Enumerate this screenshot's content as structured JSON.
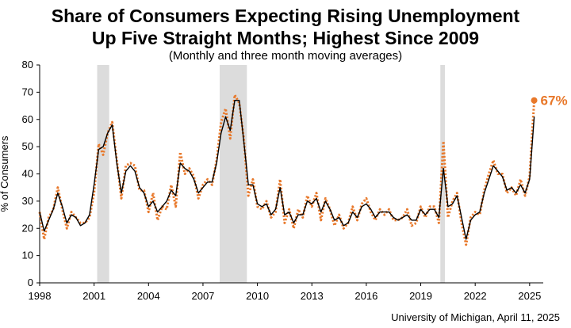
{
  "chart_data": {
    "type": "line",
    "title": "Share of Consumers Expecting Rising Unemployment",
    "title_line2": "Up Five Straight Months; Highest Since 2009",
    "subtitle": "(Monthly and three month moving averages)",
    "ylabel": "% of Consumers",
    "xlabel": "",
    "ylim": [
      0,
      80
    ],
    "yticks": [
      0,
      10,
      20,
      30,
      40,
      50,
      60,
      70,
      80
    ],
    "xlim": [
      1998,
      2025.75
    ],
    "xticks": [
      1998,
      2001,
      2004,
      2007,
      2010,
      2013,
      2016,
      2019,
      2022,
      2025
    ],
    "xtick_labels": [
      "1998",
      "2001",
      "2004",
      "2007",
      "2010",
      "2013",
      "2016",
      "2019",
      "2022",
      "2025"
    ],
    "recessions": [
      [
        2001.17,
        2001.83
      ],
      [
        2007.92,
        2009.42
      ],
      [
        2020.08,
        2020.33
      ]
    ],
    "end_label": "67%",
    "end_value": 67,
    "end_x": 2025.25,
    "source": "University of Michigan, April 11, 2025",
    "colors": {
      "monthly": "#E8782A",
      "moving_average": "#000000",
      "recession": "#DCDCDC"
    },
    "series": [
      {
        "name": "Monthly",
        "style": "dotted",
        "points": [
          [
            1998.0,
            26
          ],
          [
            1998.25,
            16
          ],
          [
            1998.5,
            24
          ],
          [
            1998.75,
            27
          ],
          [
            1999.0,
            35
          ],
          [
            1999.25,
            27
          ],
          [
            1999.5,
            20
          ],
          [
            1999.75,
            26
          ],
          [
            2000.0,
            24
          ],
          [
            2000.25,
            22
          ],
          [
            2000.5,
            22
          ],
          [
            2000.75,
            24
          ],
          [
            2001.0,
            33
          ],
          [
            2001.25,
            51
          ],
          [
            2001.5,
            47
          ],
          [
            2001.75,
            55
          ],
          [
            2002.0,
            59
          ],
          [
            2002.25,
            45
          ],
          [
            2002.5,
            31
          ],
          [
            2002.75,
            43
          ],
          [
            2003.0,
            44
          ],
          [
            2003.25,
            43
          ],
          [
            2003.5,
            34
          ],
          [
            2003.75,
            34
          ],
          [
            2004.0,
            26
          ],
          [
            2004.25,
            33
          ],
          [
            2004.5,
            23
          ],
          [
            2004.75,
            28
          ],
          [
            2005.0,
            27
          ],
          [
            2005.25,
            36
          ],
          [
            2005.5,
            28
          ],
          [
            2005.75,
            48
          ],
          [
            2006.0,
            40
          ],
          [
            2006.25,
            42
          ],
          [
            2006.5,
            39
          ],
          [
            2006.75,
            31
          ],
          [
            2007.0,
            36
          ],
          [
            2007.25,
            38
          ],
          [
            2007.5,
            36
          ],
          [
            2007.75,
            45
          ],
          [
            2008.0,
            59
          ],
          [
            2008.25,
            64
          ],
          [
            2008.5,
            53
          ],
          [
            2008.75,
            69
          ],
          [
            2009.0,
            66
          ],
          [
            2009.25,
            53
          ],
          [
            2009.5,
            32
          ],
          [
            2009.75,
            38
          ],
          [
            2010.0,
            28
          ],
          [
            2010.25,
            27
          ],
          [
            2010.5,
            30
          ],
          [
            2010.75,
            24
          ],
          [
            2011.0,
            26
          ],
          [
            2011.25,
            38
          ],
          [
            2011.5,
            22
          ],
          [
            2011.75,
            27
          ],
          [
            2012.0,
            20
          ],
          [
            2012.25,
            27
          ],
          [
            2012.5,
            24
          ],
          [
            2012.75,
            32
          ],
          [
            2013.0,
            28
          ],
          [
            2013.25,
            33
          ],
          [
            2013.5,
            23
          ],
          [
            2013.75,
            31
          ],
          [
            2014.0,
            27
          ],
          [
            2014.25,
            21
          ],
          [
            2014.5,
            25
          ],
          [
            2014.75,
            20
          ],
          [
            2015.0,
            22
          ],
          [
            2015.25,
            28
          ],
          [
            2015.5,
            23
          ],
          [
            2015.75,
            29
          ],
          [
            2016.0,
            31
          ],
          [
            2016.25,
            26
          ],
          [
            2016.5,
            23
          ],
          [
            2016.75,
            27
          ],
          [
            2017.0,
            25
          ],
          [
            2017.25,
            27
          ],
          [
            2017.5,
            23
          ],
          [
            2017.75,
            23
          ],
          [
            2018.0,
            24
          ],
          [
            2018.25,
            27
          ],
          [
            2018.5,
            21
          ],
          [
            2018.75,
            22
          ],
          [
            2019.0,
            28
          ],
          [
            2019.25,
            24
          ],
          [
            2019.5,
            28
          ],
          [
            2019.75,
            28
          ],
          [
            2020.0,
            22
          ],
          [
            2020.25,
            52
          ],
          [
            2020.5,
            24
          ],
          [
            2020.75,
            30
          ],
          [
            2021.0,
            33
          ],
          [
            2021.25,
            22
          ],
          [
            2021.5,
            14
          ],
          [
            2021.75,
            24
          ],
          [
            2022.0,
            26
          ],
          [
            2022.25,
            25
          ],
          [
            2022.5,
            34
          ],
          [
            2022.75,
            40
          ],
          [
            2023.0,
            45
          ],
          [
            2023.25,
            40
          ],
          [
            2023.5,
            40
          ],
          [
            2023.75,
            33
          ],
          [
            2024.0,
            35
          ],
          [
            2024.25,
            32
          ],
          [
            2024.5,
            38
          ],
          [
            2024.75,
            32
          ],
          [
            2025.0,
            39
          ],
          [
            2025.25,
            67
          ]
        ]
      },
      {
        "name": "Three month moving average",
        "style": "solid",
        "points": [
          [
            1998.0,
            26
          ],
          [
            1998.25,
            19
          ],
          [
            1998.5,
            23
          ],
          [
            1998.75,
            27
          ],
          [
            1999.0,
            33
          ],
          [
            1999.25,
            28
          ],
          [
            1999.5,
            22
          ],
          [
            1999.75,
            25
          ],
          [
            2000.0,
            24
          ],
          [
            2000.25,
            21
          ],
          [
            2000.5,
            22
          ],
          [
            2000.75,
            25
          ],
          [
            2001.0,
            36
          ],
          [
            2001.25,
            49
          ],
          [
            2001.5,
            50
          ],
          [
            2001.75,
            55
          ],
          [
            2002.0,
            58
          ],
          [
            2002.25,
            44
          ],
          [
            2002.5,
            33
          ],
          [
            2002.75,
            41
          ],
          [
            2003.0,
            43
          ],
          [
            2003.25,
            41
          ],
          [
            2003.5,
            35
          ],
          [
            2003.75,
            33
          ],
          [
            2004.0,
            28
          ],
          [
            2004.25,
            30
          ],
          [
            2004.5,
            26
          ],
          [
            2004.75,
            28
          ],
          [
            2005.0,
            30
          ],
          [
            2005.25,
            34
          ],
          [
            2005.5,
            32
          ],
          [
            2005.75,
            44
          ],
          [
            2006.0,
            42
          ],
          [
            2006.25,
            41
          ],
          [
            2006.5,
            38
          ],
          [
            2006.75,
            33
          ],
          [
            2007.0,
            35
          ],
          [
            2007.25,
            37
          ],
          [
            2007.5,
            37
          ],
          [
            2007.75,
            44
          ],
          [
            2008.0,
            55
          ],
          [
            2008.25,
            61
          ],
          [
            2008.5,
            56
          ],
          [
            2008.75,
            67
          ],
          [
            2009.0,
            67
          ],
          [
            2009.25,
            52
          ],
          [
            2009.5,
            36
          ],
          [
            2009.75,
            36
          ],
          [
            2010.0,
            29
          ],
          [
            2010.25,
            28
          ],
          [
            2010.5,
            29
          ],
          [
            2010.75,
            25
          ],
          [
            2011.0,
            27
          ],
          [
            2011.25,
            35
          ],
          [
            2011.5,
            25
          ],
          [
            2011.75,
            26
          ],
          [
            2012.0,
            22
          ],
          [
            2012.25,
            25
          ],
          [
            2012.5,
            25
          ],
          [
            2012.75,
            30
          ],
          [
            2013.0,
            29
          ],
          [
            2013.25,
            31
          ],
          [
            2013.5,
            26
          ],
          [
            2013.75,
            30
          ],
          [
            2014.0,
            27
          ],
          [
            2014.25,
            23
          ],
          [
            2014.5,
            24
          ],
          [
            2014.75,
            21
          ],
          [
            2015.0,
            22
          ],
          [
            2015.25,
            26
          ],
          [
            2015.5,
            24
          ],
          [
            2015.75,
            28
          ],
          [
            2016.0,
            29
          ],
          [
            2016.25,
            27
          ],
          [
            2016.5,
            24
          ],
          [
            2016.75,
            26
          ],
          [
            2017.0,
            26
          ],
          [
            2017.25,
            26
          ],
          [
            2017.5,
            24
          ],
          [
            2017.75,
            23
          ],
          [
            2018.0,
            24
          ],
          [
            2018.25,
            25
          ],
          [
            2018.5,
            23
          ],
          [
            2018.75,
            23
          ],
          [
            2019.0,
            27
          ],
          [
            2019.25,
            25
          ],
          [
            2019.5,
            27
          ],
          [
            2019.75,
            27
          ],
          [
            2020.0,
            24
          ],
          [
            2020.25,
            42
          ],
          [
            2020.5,
            28
          ],
          [
            2020.75,
            29
          ],
          [
            2021.0,
            32
          ],
          [
            2021.25,
            24
          ],
          [
            2021.5,
            16
          ],
          [
            2021.75,
            23
          ],
          [
            2022.0,
            25
          ],
          [
            2022.25,
            26
          ],
          [
            2022.5,
            33
          ],
          [
            2022.75,
            38
          ],
          [
            2023.0,
            43
          ],
          [
            2023.25,
            41
          ],
          [
            2023.5,
            39
          ],
          [
            2023.75,
            34
          ],
          [
            2024.0,
            35
          ],
          [
            2024.25,
            33
          ],
          [
            2024.5,
            36
          ],
          [
            2024.75,
            33
          ],
          [
            2025.0,
            38
          ],
          [
            2025.25,
            61
          ]
        ]
      }
    ]
  }
}
